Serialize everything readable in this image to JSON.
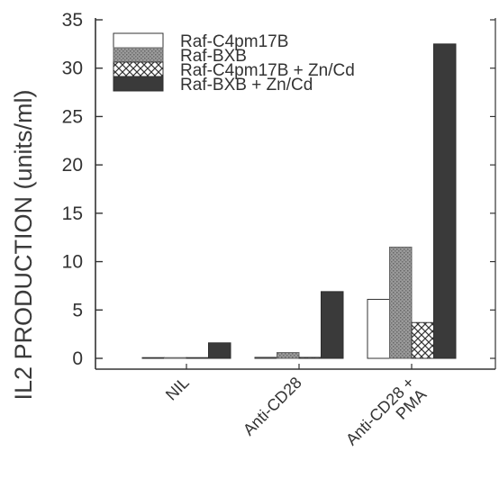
{
  "chart_data": {
    "type": "bar",
    "title": "",
    "xlabel": "",
    "ylabel": "IL2 PRODUCTION (units/ml)",
    "ylim": [
      0,
      35
    ],
    "yticks": [
      0,
      5,
      10,
      15,
      20,
      25,
      30,
      35
    ],
    "tick_labels": [
      "0",
      "5",
      "10",
      "15",
      "20",
      "25",
      "30",
      "35"
    ],
    "categories": [
      "NIL",
      "Anti-CD28",
      "Anti-CD28 + PMA"
    ],
    "category_lines": [
      [
        "NIL"
      ],
      [
        "Anti-CD28"
      ],
      [
        "Anti-CD28 +",
        "PMA"
      ]
    ],
    "legend_position": "top-left",
    "grid": false,
    "series": [
      {
        "name": "Raf-C4pm17B",
        "values": [
          0,
          0.1,
          6.1
        ],
        "fill": "white"
      },
      {
        "name": "Raf-BXB",
        "values": [
          0,
          0.6,
          11.5
        ],
        "fill": "stipple"
      },
      {
        "name": "Raf-C4pm17B + Zn/Cd",
        "values": [
          0,
          0.1,
          3.7
        ],
        "fill": "crosshatch"
      },
      {
        "name": "Raf-BXB + Zn/Cd",
        "values": [
          1.6,
          6.9,
          32.5
        ],
        "fill": "dark"
      }
    ],
    "colors": {
      "axis": "#333333",
      "dark_bar": "#3a3a3a",
      "stipple": "#8a8a8a"
    }
  }
}
